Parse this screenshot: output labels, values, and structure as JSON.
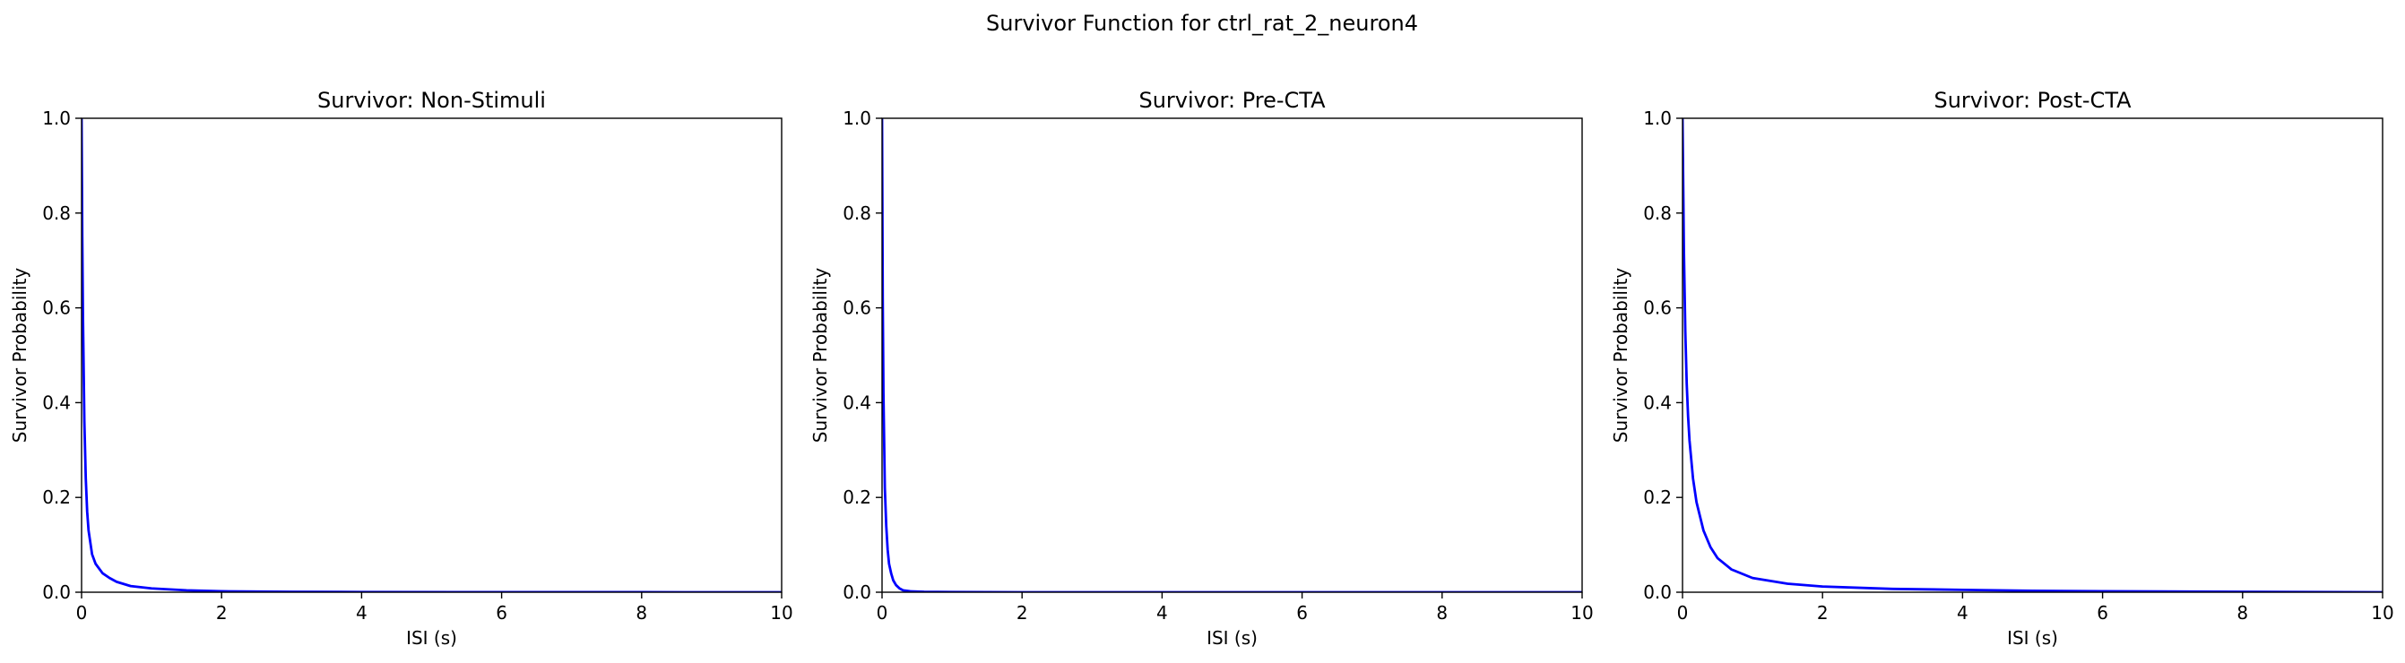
{
  "figure": {
    "suptitle": "Survivor Function for ctrl_rat_2_neuron4"
  },
  "chart_data": [
    {
      "type": "line",
      "title": "Survivor: Non-Stimuli",
      "xlabel": "ISI (s)",
      "ylabel": "Survivor Probability",
      "xlim": [
        0,
        10
      ],
      "ylim": [
        0,
        1
      ],
      "xticks": [
        "0",
        "2",
        "4",
        "6",
        "8",
        "10"
      ],
      "yticks": [
        "0.0",
        "0.2",
        "0.4",
        "0.6",
        "0.8",
        "1.0"
      ],
      "grid": false,
      "series": [
        {
          "color": "#0000ff",
          "x": [
            0,
            0.01,
            0.02,
            0.04,
            0.06,
            0.08,
            0.1,
            0.15,
            0.2,
            0.3,
            0.4,
            0.5,
            0.7,
            1.0,
            1.5,
            2.0,
            3.0,
            4.0,
            6.0,
            8.0,
            10.0
          ],
          "y": [
            1.0,
            0.75,
            0.58,
            0.36,
            0.24,
            0.17,
            0.13,
            0.08,
            0.06,
            0.04,
            0.03,
            0.022,
            0.013,
            0.008,
            0.004,
            0.002,
            0.001,
            0.0005,
            0.0002,
            0.0001,
            0.0
          ]
        }
      ]
    },
    {
      "type": "line",
      "title": "Survivor: Pre-CTA",
      "xlabel": "ISI (s)",
      "ylabel": "Survivor Probability",
      "xlim": [
        0,
        10
      ],
      "ylim": [
        0,
        1
      ],
      "xticks": [
        "0",
        "2",
        "4",
        "6",
        "8",
        "10"
      ],
      "yticks": [
        "0.0",
        "0.2",
        "0.4",
        "0.6",
        "0.8",
        "1.0"
      ],
      "grid": false,
      "series": [
        {
          "color": "#0000ff",
          "x": [
            0,
            0.01,
            0.02,
            0.04,
            0.06,
            0.08,
            0.1,
            0.13,
            0.16,
            0.2,
            0.25,
            0.3,
            0.4,
            0.6,
            1.0,
            2.0,
            5.0,
            10.0
          ],
          "y": [
            1.0,
            0.62,
            0.42,
            0.22,
            0.14,
            0.09,
            0.06,
            0.04,
            0.025,
            0.015,
            0.008,
            0.004,
            0.002,
            0.001,
            0.0005,
            0.0,
            0.0,
            0.0
          ]
        }
      ]
    },
    {
      "type": "line",
      "title": "Survivor: Post-CTA",
      "xlabel": "ISI (s)",
      "ylabel": "Survivor Probability",
      "xlim": [
        0,
        10
      ],
      "ylim": [
        0,
        1
      ],
      "xticks": [
        "0",
        "2",
        "4",
        "6",
        "8",
        "10"
      ],
      "yticks": [
        "0.0",
        "0.2",
        "0.4",
        "0.6",
        "0.8",
        "1.0"
      ],
      "grid": false,
      "series": [
        {
          "color": "#0000ff",
          "x": [
            0,
            0.01,
            0.02,
            0.04,
            0.06,
            0.08,
            0.1,
            0.15,
            0.2,
            0.3,
            0.4,
            0.5,
            0.7,
            1.0,
            1.5,
            2.0,
            3.0,
            4.0,
            5.0,
            6.0,
            8.0,
            10.0
          ],
          "y": [
            1.0,
            0.86,
            0.72,
            0.55,
            0.44,
            0.37,
            0.32,
            0.24,
            0.19,
            0.13,
            0.095,
            0.072,
            0.048,
            0.03,
            0.018,
            0.012,
            0.007,
            0.005,
            0.003,
            0.002,
            0.001,
            0.0
          ]
        }
      ]
    }
  ]
}
